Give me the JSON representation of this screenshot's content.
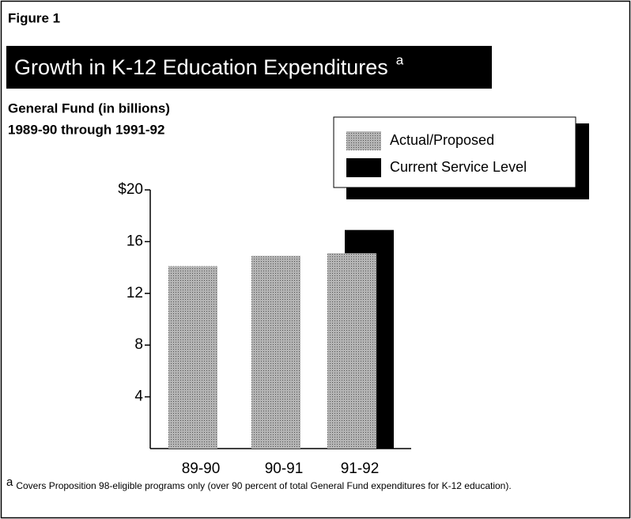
{
  "chart_data": {
    "type": "bar",
    "figure_label": "Figure 1",
    "title": "Growth in K-12 Education Expenditures",
    "title_marker": "a",
    "subtitle": [
      "General Fund (in billions)",
      "1989-90 through 1991-92"
    ],
    "categories": [
      "89-90",
      "90-91",
      "91-92"
    ],
    "series": [
      {
        "name": "Actual/Proposed",
        "color": "#b4b4b4",
        "values": [
          14.1,
          14.9,
          15.1
        ]
      },
      {
        "name": "Current Service Level",
        "color": "#000000",
        "values": [
          null,
          null,
          16.9
        ]
      }
    ],
    "ylim": [
      0,
      20
    ],
    "yticks": [
      4,
      8,
      12,
      16,
      {
        "value": 20,
        "label": "$20"
      }
    ],
    "legend": "top-right",
    "footnote": {
      "marker": "a",
      "text": "Covers Proposition 98-eligible programs only (over 90 percent of total General Fund expenditures for K-12 education)."
    }
  }
}
